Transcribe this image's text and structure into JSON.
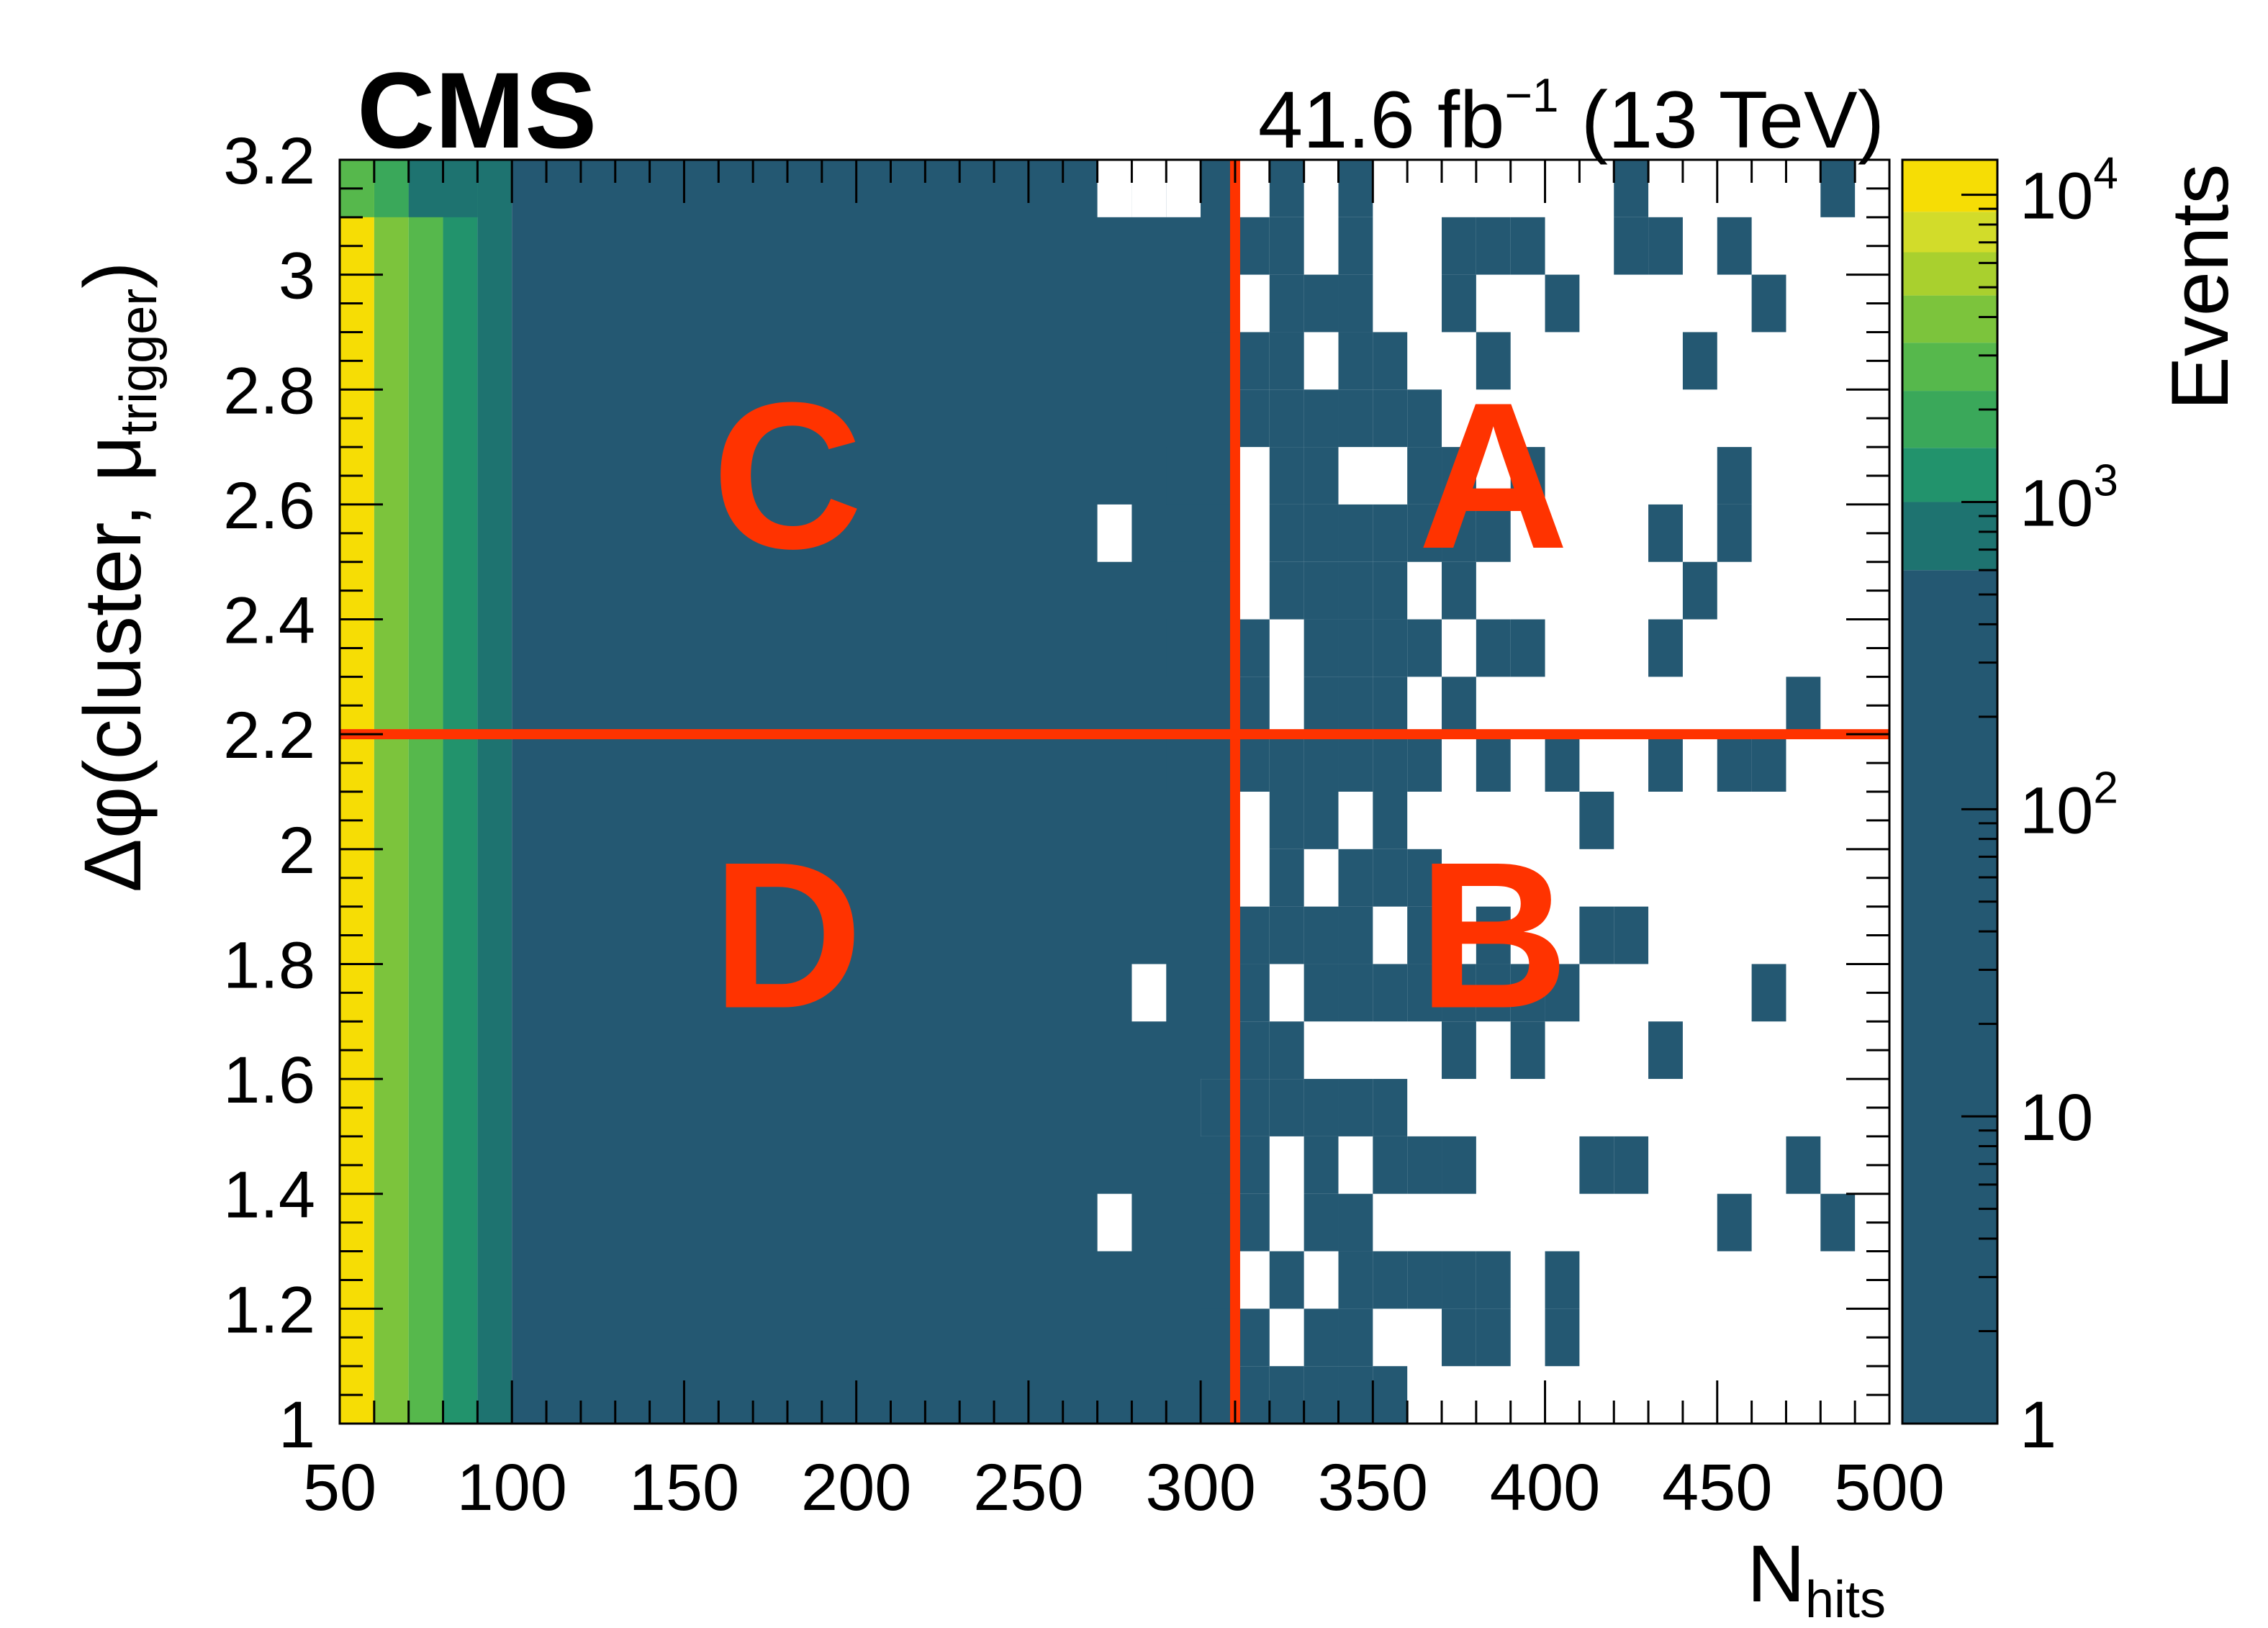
{
  "experiment_label": "CMS",
  "lumi_label": {
    "lumi": "41.6 fb",
    "exponent": "−1",
    "energy": "(13 TeV)"
  },
  "chart_data": {
    "type": "heatmap",
    "title": "",
    "xlabel": {
      "main": "N",
      "sub": "hits"
    },
    "ylabel": {
      "main": "Δφ(cluster, μ",
      "sub": "trigger",
      "close": ")"
    },
    "colorbar_label": "Events",
    "xlim": [
      50,
      500
    ],
    "ylim": [
      1,
      3.2
    ],
    "xbin_width": 10,
    "ybin_width": 0.1,
    "x_ticks": [
      "50",
      "100",
      "150",
      "200",
      "250",
      "300",
      "350",
      "400",
      "450",
      "500"
    ],
    "x_tick_values": [
      50,
      100,
      150,
      200,
      250,
      300,
      350,
      400,
      450,
      500
    ],
    "y_ticks": [
      "1",
      "1.2",
      "1.4",
      "1.6",
      "1.8",
      "2",
      "2.2",
      "2.4",
      "2.6",
      "2.8",
      "3",
      "3.2"
    ],
    "y_tick_values": [
      1,
      1.2,
      1.4,
      1.6,
      1.8,
      2,
      2.2,
      2.4,
      2.6,
      2.8,
      3,
      3.2
    ],
    "z_scale": "log",
    "zlim": [
      1,
      13000
    ],
    "z_ticks": [
      {
        "value": 1,
        "base": "1",
        "exp": ""
      },
      {
        "value": 10,
        "base": "10",
        "exp": ""
      },
      {
        "value": 100,
        "base": "10",
        "exp": "2"
      },
      {
        "value": 1000,
        "base": "10",
        "exp": "3"
      },
      {
        "value": 10000,
        "base": "10",
        "exp": "4"
      }
    ],
    "colormap": [
      "#245872",
      "#1e7370",
      "#22936c",
      "#3aa85a",
      "#56b84c",
      "#7cc43c",
      "#a9d02e",
      "#d2dc2a",
      "#f6dd05"
    ],
    "column_levels": [
      {
        "x": 50,
        "level": 8
      },
      {
        "x": 60,
        "level": 5
      },
      {
        "x": 70,
        "level": 4
      },
      {
        "x": 80,
        "level": 2
      },
      {
        "x": 90,
        "level": 1
      }
    ],
    "top_row_levels": [
      {
        "x": 50,
        "level": 4
      },
      {
        "x": 60,
        "level": 3
      },
      {
        "x": 70,
        "level": 1
      },
      {
        "x": 80,
        "level": 1
      }
    ],
    "base_fill_range": [
      100,
      310
    ],
    "cells": [
      [
        300,
        3.1
      ],
      [
        320,
        3.1
      ],
      [
        340,
        3.1
      ],
      [
        420,
        3.1
      ],
      [
        480,
        3.1
      ],
      [
        310,
        3.0
      ],
      [
        320,
        3.0
      ],
      [
        340,
        3.0
      ],
      [
        370,
        3.0
      ],
      [
        380,
        3.0
      ],
      [
        390,
        3.0
      ],
      [
        420,
        3.0
      ],
      [
        430,
        3.0
      ],
      [
        450,
        3.0
      ],
      [
        300,
        2.9
      ],
      [
        320,
        2.9
      ],
      [
        330,
        2.9
      ],
      [
        340,
        2.9
      ],
      [
        370,
        2.9
      ],
      [
        400,
        2.9
      ],
      [
        460,
        2.9
      ],
      [
        280,
        2.8
      ],
      [
        300,
        2.8
      ],
      [
        310,
        2.8
      ],
      [
        320,
        2.8
      ],
      [
        340,
        2.8
      ],
      [
        350,
        2.8
      ],
      [
        380,
        2.8
      ],
      [
        440,
        2.8
      ],
      [
        290,
        2.7
      ],
      [
        300,
        2.7
      ],
      [
        310,
        2.7
      ],
      [
        320,
        2.7
      ],
      [
        330,
        2.7
      ],
      [
        340,
        2.7
      ],
      [
        350,
        2.7
      ],
      [
        360,
        2.7
      ],
      [
        280,
        2.6
      ],
      [
        290,
        2.6
      ],
      [
        300,
        2.6
      ],
      [
        320,
        2.6
      ],
      [
        330,
        2.6
      ],
      [
        360,
        2.6
      ],
      [
        370,
        2.6
      ],
      [
        390,
        2.6
      ],
      [
        450,
        2.6
      ],
      [
        290,
        2.5
      ],
      [
        300,
        2.5
      ],
      [
        320,
        2.5
      ],
      [
        330,
        2.5
      ],
      [
        340,
        2.5
      ],
      [
        350,
        2.5
      ],
      [
        360,
        2.5
      ],
      [
        370,
        2.5
      ],
      [
        380,
        2.5
      ],
      [
        430,
        2.5
      ],
      [
        450,
        2.5
      ],
      [
        290,
        2.4
      ],
      [
        300,
        2.4
      ],
      [
        320,
        2.4
      ],
      [
        330,
        2.4
      ],
      [
        340,
        2.4
      ],
      [
        350,
        2.4
      ],
      [
        370,
        2.4
      ],
      [
        440,
        2.4
      ],
      [
        280,
        2.3
      ],
      [
        290,
        2.3
      ],
      [
        300,
        2.3
      ],
      [
        310,
        2.3
      ],
      [
        330,
        2.3
      ],
      [
        340,
        2.3
      ],
      [
        350,
        2.3
      ],
      [
        360,
        2.3
      ],
      [
        380,
        2.3
      ],
      [
        390,
        2.3
      ],
      [
        430,
        2.3
      ],
      [
        290,
        2.2
      ],
      [
        300,
        2.2
      ],
      [
        310,
        2.2
      ],
      [
        330,
        2.2
      ],
      [
        340,
        2.2
      ],
      [
        350,
        2.2
      ],
      [
        370,
        2.2
      ],
      [
        470,
        2.2
      ],
      [
        280,
        2.1
      ],
      [
        290,
        2.1
      ],
      [
        300,
        2.1
      ],
      [
        310,
        2.1
      ],
      [
        320,
        2.1
      ],
      [
        330,
        2.1
      ],
      [
        340,
        2.1
      ],
      [
        350,
        2.1
      ],
      [
        360,
        2.1
      ],
      [
        380,
        2.1
      ],
      [
        400,
        2.1
      ],
      [
        430,
        2.1
      ],
      [
        450,
        2.1
      ],
      [
        460,
        2.1
      ],
      [
        280,
        2.0
      ],
      [
        300,
        2.0
      ],
      [
        320,
        2.0
      ],
      [
        330,
        2.0
      ],
      [
        350,
        2.0
      ],
      [
        410,
        2.0
      ],
      [
        300,
        1.9
      ],
      [
        320,
        1.9
      ],
      [
        340,
        1.9
      ],
      [
        350,
        1.9
      ],
      [
        360,
        1.9
      ],
      [
        280,
        1.8
      ],
      [
        300,
        1.8
      ],
      [
        310,
        1.8
      ],
      [
        320,
        1.8
      ],
      [
        330,
        1.8
      ],
      [
        340,
        1.8
      ],
      [
        360,
        1.8
      ],
      [
        380,
        1.8
      ],
      [
        410,
        1.8
      ],
      [
        420,
        1.8
      ],
      [
        270,
        1.7
      ],
      [
        300,
        1.7
      ],
      [
        310,
        1.7
      ],
      [
        330,
        1.7
      ],
      [
        340,
        1.7
      ],
      [
        350,
        1.7
      ],
      [
        360,
        1.7
      ],
      [
        370,
        1.7
      ],
      [
        380,
        1.7
      ],
      [
        390,
        1.7
      ],
      [
        400,
        1.7
      ],
      [
        460,
        1.7
      ],
      [
        290,
        1.6
      ],
      [
        300,
        1.6
      ],
      [
        310,
        1.6
      ],
      [
        320,
        1.6
      ],
      [
        370,
        1.6
      ],
      [
        390,
        1.6
      ],
      [
        430,
        1.6
      ],
      [
        300,
        1.5
      ],
      [
        310,
        1.5
      ],
      [
        320,
        1.5
      ],
      [
        330,
        1.5
      ],
      [
        340,
        1.5
      ],
      [
        350,
        1.5
      ],
      [
        280,
        1.4
      ],
      [
        300,
        1.4
      ],
      [
        310,
        1.4
      ],
      [
        330,
        1.4
      ],
      [
        350,
        1.4
      ],
      [
        360,
        1.4
      ],
      [
        370,
        1.4
      ],
      [
        410,
        1.4
      ],
      [
        420,
        1.4
      ],
      [
        470,
        1.4
      ],
      [
        260,
        1.3
      ],
      [
        300,
        1.3
      ],
      [
        310,
        1.3
      ],
      [
        330,
        1.3
      ],
      [
        340,
        1.3
      ],
      [
        450,
        1.3
      ],
      [
        480,
        1.3
      ],
      [
        290,
        1.2
      ],
      [
        300,
        1.2
      ],
      [
        320,
        1.2
      ],
      [
        340,
        1.2
      ],
      [
        350,
        1.2
      ],
      [
        360,
        1.2
      ],
      [
        370,
        1.2
      ],
      [
        380,
        1.2
      ],
      [
        400,
        1.2
      ],
      [
        300,
        1.1
      ],
      [
        310,
        1.1
      ],
      [
        330,
        1.1
      ],
      [
        340,
        1.1
      ],
      [
        370,
        1.1
      ],
      [
        380,
        1.1
      ],
      [
        400,
        1.1
      ],
      [
        300,
        1.0
      ],
      [
        310,
        1.0
      ],
      [
        320,
        1.0
      ],
      [
        330,
        1.0
      ],
      [
        340,
        1.0
      ],
      [
        350,
        1.0
      ]
    ],
    "white_gaps_in_fill": [
      [
        270,
        3.1
      ],
      [
        280,
        3.1
      ],
      [
        290,
        3.1
      ],
      [
        270,
        2.5
      ],
      [
        280,
        1.7
      ],
      [
        300,
        1.5
      ],
      [
        270,
        1.3
      ]
    ],
    "cut_lines": {
      "x": 310,
      "y": 2.2,
      "color": "#ff3300"
    },
    "regions": [
      {
        "label": "C",
        "x": 180,
        "y": 2.65
      },
      {
        "label": "A",
        "x": 385,
        "y": 2.65
      },
      {
        "label": "D",
        "x": 180,
        "y": 1.85
      },
      {
        "label": "B",
        "x": 385,
        "y": 1.85
      }
    ]
  }
}
